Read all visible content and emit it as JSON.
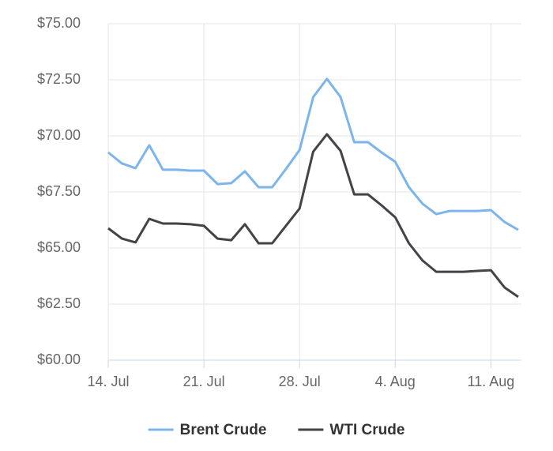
{
  "chart_data": {
    "type": "line",
    "categories": [
      "14. Jul",
      null,
      null,
      null,
      null,
      null,
      null,
      "21. Jul",
      null,
      null,
      null,
      null,
      null,
      null,
      "28. Jul",
      null,
      null,
      null,
      null,
      null,
      null,
      "4. Aug",
      null,
      null,
      null,
      null,
      null,
      null,
      "11. Aug",
      null,
      null
    ],
    "series": [
      {
        "name": "Brent Crude",
        "color": "#7cb5ec",
        "values": [
          69.26,
          68.77,
          68.56,
          69.58,
          68.49,
          68.49,
          68.45,
          68.45,
          67.85,
          67.89,
          68.42,
          67.71,
          67.71,
          68.52,
          69.37,
          71.73,
          72.54,
          71.73,
          69.72,
          69.72,
          69.26,
          68.84,
          67.71,
          66.97,
          66.51,
          66.65,
          66.65,
          66.65,
          66.69,
          66.16,
          65.81
        ]
      },
      {
        "name": "WTI Crude",
        "color": "#434348",
        "values": [
          65.88,
          65.42,
          65.25,
          66.3,
          66.09,
          66.09,
          66.06,
          65.99,
          65.42,
          65.35,
          66.06,
          65.21,
          65.21,
          65.99,
          66.76,
          69.3,
          70.07,
          69.33,
          67.39,
          67.39,
          66.9,
          66.37,
          65.21,
          64.44,
          63.94,
          63.94,
          63.94,
          63.98,
          64.01,
          63.24,
          62.82
        ]
      }
    ],
    "ylim": [
      60,
      75
    ],
    "yticks": [
      {
        "value": 60,
        "label": "$60.00"
      },
      {
        "value": 62.5,
        "label": "$62.50"
      },
      {
        "value": 65,
        "label": "$65.00"
      },
      {
        "value": 67.5,
        "label": "$67.50"
      },
      {
        "value": 70,
        "label": "$70.00"
      },
      {
        "value": 72.5,
        "label": "$72.50"
      },
      {
        "value": 75,
        "label": "$75.00"
      }
    ],
    "grid": true,
    "legend": "bottom"
  }
}
